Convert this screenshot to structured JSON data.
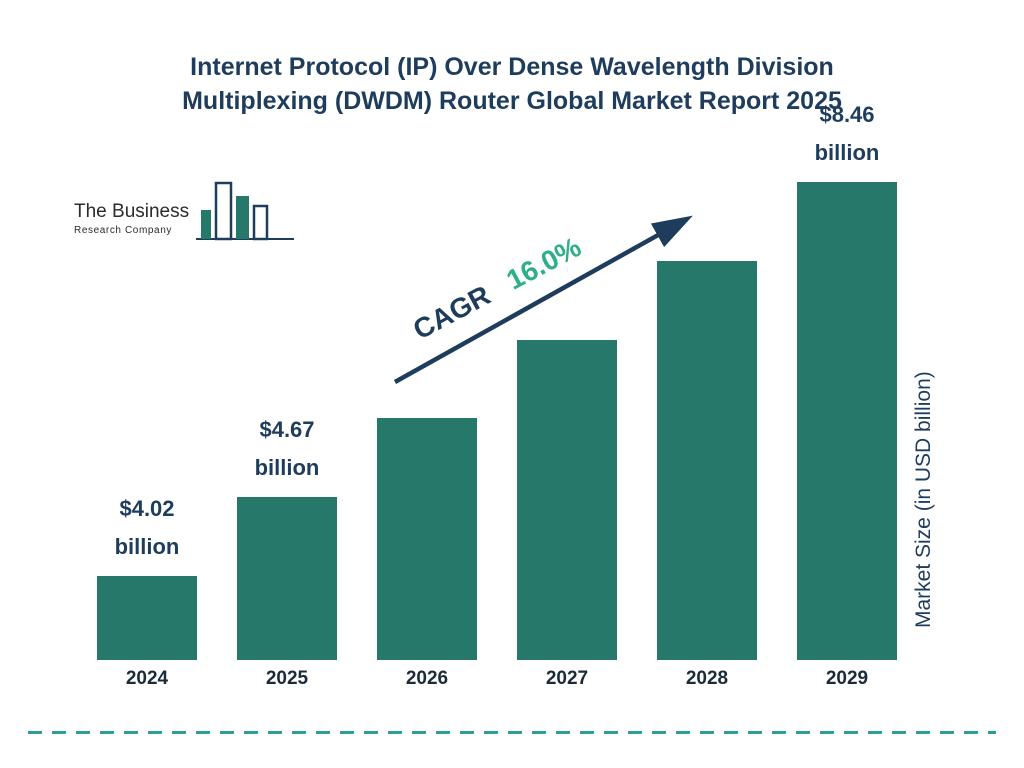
{
  "page": {
    "title": "Internet Protocol (IP) Over Dense Wavelength Division Multiplexing (DWDM) Router Global Market Report 2025"
  },
  "logo": {
    "line1": "The Business",
    "line2": "Research Company"
  },
  "chart_data": {
    "type": "bar",
    "title": "Internet Protocol (IP) Over Dense Wavelength Division Multiplexing (DWDM) Router Global Market Report 2025",
    "categories": [
      "2024",
      "2025",
      "2026",
      "2027",
      "2028",
      "2029"
    ],
    "values": [
      4.02,
      4.67,
      5.42,
      6.28,
      7.29,
      8.46
    ],
    "unit": "USD billion",
    "bar_value_labels": [
      "$4.02 billion",
      "$4.67 billion",
      "",
      "",
      "",
      "$8.46 billion"
    ],
    "cagr_label": "CAGR",
    "cagr_value": "16.0%",
    "ylabel": "Market Size (in USD billion)",
    "xlabel": "",
    "legend": "none",
    "grid": false,
    "colors": {
      "bar": "#26796a",
      "title": "#1e3c5c",
      "cagr_value": "#2fae8a",
      "dashed_line": "#2e9e9a",
      "arrow": "#1e3c5c"
    }
  }
}
